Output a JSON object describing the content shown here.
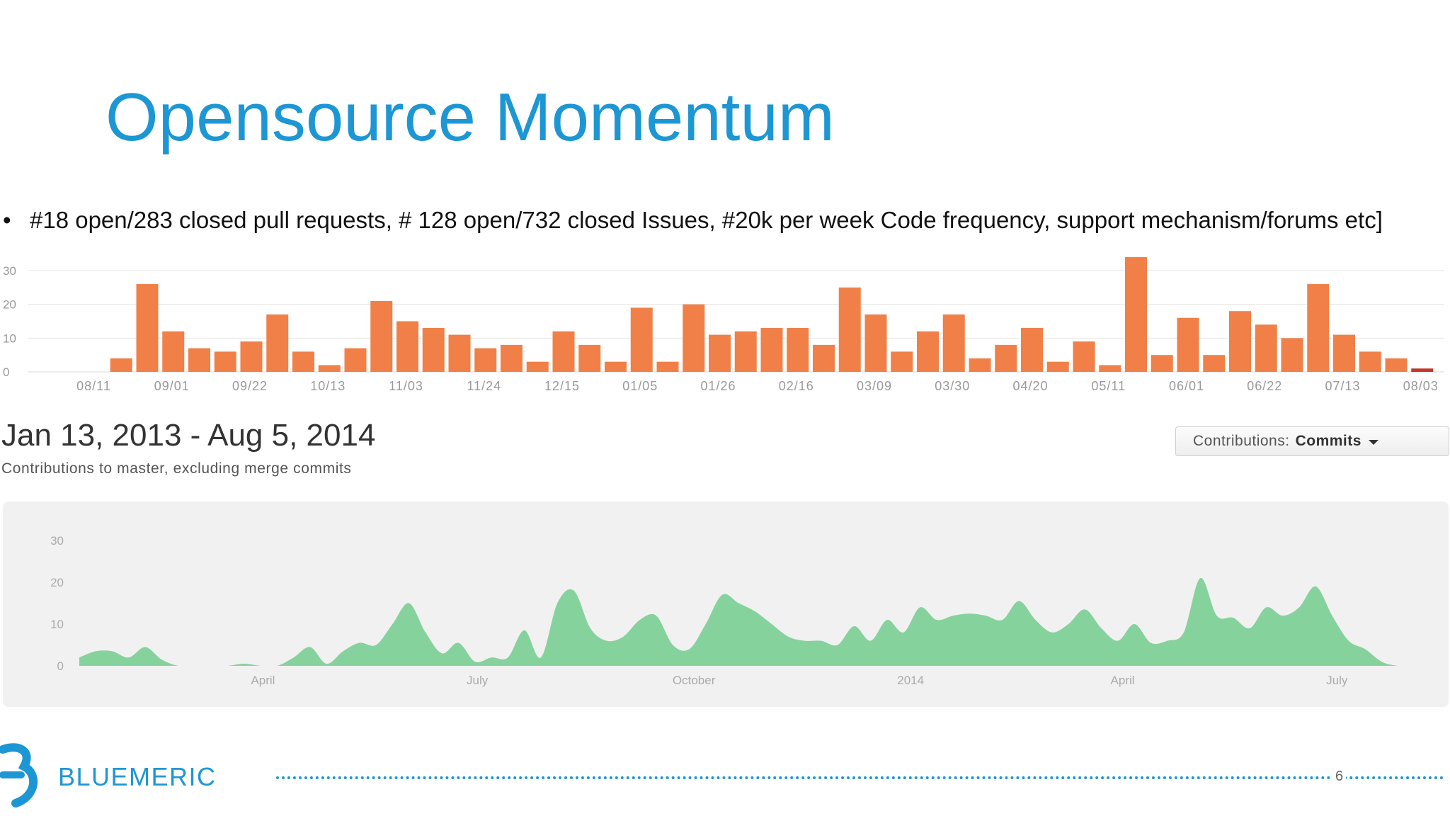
{
  "slide": {
    "title": "Opensource Momentum",
    "bullet_symbol": "•",
    "bullet": "#18 open/283 closed pull requests, # 128 open/732 closed Issues, #20k per week Code frequency, support mechanism/forums etc]",
    "brand": "BLUEMERIC",
    "page_number": "6"
  },
  "colors": {
    "title": "#1d97d3",
    "bar": "#f08048",
    "area": "#86d29d",
    "brand": "#1d97d3"
  },
  "date_range": "Jan 13, 2013 - Aug 5, 2014",
  "date_subtitle": "Contributions to master, excluding merge commits",
  "contributions_select": {
    "label": "Contributions:",
    "value": "Commits"
  },
  "chart_data": [
    {
      "type": "bar",
      "ylim": [
        0,
        30
      ],
      "yticks": [
        "0",
        "10",
        "20",
        "30"
      ],
      "grid": true,
      "xtick_labels": [
        "08/11",
        "09/01",
        "09/22",
        "10/13",
        "11/03",
        "11/24",
        "12/15",
        "01/05",
        "01/26",
        "02/16",
        "03/09",
        "03/30",
        "04/20",
        "05/11",
        "06/01",
        "06/22",
        "07/13",
        "08/03"
      ],
      "x": [
        "08/11",
        "08/18",
        "08/25",
        "09/01",
        "09/08",
        "09/15",
        "09/22",
        "09/29",
        "10/06",
        "10/13",
        "10/20",
        "10/27",
        "11/03",
        "11/10",
        "11/17",
        "11/24",
        "12/01",
        "12/08",
        "12/15",
        "12/22",
        "12/29",
        "01/05",
        "01/12",
        "01/19",
        "01/26",
        "02/02",
        "02/09",
        "02/16",
        "02/23",
        "03/02",
        "03/09",
        "03/16",
        "03/23",
        "03/30",
        "04/06",
        "04/13",
        "04/20",
        "04/27",
        "05/04",
        "05/11",
        "05/18",
        "05/25",
        "06/01",
        "06/08",
        "06/15",
        "06/22",
        "06/29",
        "07/06",
        "07/13",
        "07/20",
        "07/27",
        "08/03"
      ],
      "values": [
        0,
        4,
        26,
        12,
        7,
        6,
        9,
        17,
        6,
        2,
        7,
        21,
        15,
        13,
        11,
        7,
        8,
        3,
        12,
        8,
        3,
        19,
        3,
        20,
        11,
        12,
        13,
        13,
        8,
        25,
        17,
        6,
        12,
        17,
        4,
        8,
        13,
        3,
        9,
        2,
        34,
        5,
        16,
        5,
        18,
        14,
        10,
        26,
        11,
        6,
        4,
        1
      ]
    },
    {
      "type": "area",
      "ylim": [
        0,
        30
      ],
      "yticks": [
        "0",
        "10",
        "20",
        "30"
      ],
      "grid": false,
      "x_labels": [
        "April",
        "July",
        "October",
        "2014",
        "April",
        "July"
      ],
      "x": [
        "2013-01-13",
        "2013-01-20",
        "2013-01-27",
        "2013-02-03",
        "2013-02-10",
        "2013-02-17",
        "2013-02-24",
        "2013-03-03",
        "2013-03-10",
        "2013-03-17",
        "2013-03-24",
        "2013-03-31",
        "2013-04-07",
        "2013-04-14",
        "2013-04-21",
        "2013-04-28",
        "2013-05-05",
        "2013-05-12",
        "2013-05-19",
        "2013-05-26",
        "2013-06-02",
        "2013-06-09",
        "2013-06-16",
        "2013-06-23",
        "2013-06-30",
        "2013-07-07",
        "2013-07-14",
        "2013-07-21",
        "2013-07-28",
        "2013-08-04",
        "2013-08-11",
        "2013-08-18",
        "2013-08-25",
        "2013-09-01",
        "2013-09-08",
        "2013-09-15",
        "2013-09-22",
        "2013-09-29",
        "2013-10-06",
        "2013-10-13",
        "2013-10-20",
        "2013-10-27",
        "2013-11-03",
        "2013-11-10",
        "2013-11-17",
        "2013-11-24",
        "2013-12-01",
        "2013-12-08",
        "2013-12-15",
        "2013-12-22",
        "2013-12-29",
        "2014-01-05",
        "2014-01-12",
        "2014-01-19",
        "2014-01-26",
        "2014-02-02",
        "2014-02-09",
        "2014-02-16",
        "2014-02-23",
        "2014-03-02",
        "2014-03-09",
        "2014-03-16",
        "2014-03-23",
        "2014-03-30",
        "2014-04-06",
        "2014-04-13",
        "2014-04-20",
        "2014-04-27",
        "2014-05-04",
        "2014-05-11",
        "2014-05-18",
        "2014-05-25",
        "2014-06-01",
        "2014-06-08",
        "2014-06-15",
        "2014-06-22",
        "2014-06-29",
        "2014-07-06",
        "2014-07-13",
        "2014-07-20",
        "2014-07-27",
        "2014-08-03"
      ],
      "values": [
        2,
        3.5,
        3.5,
        2,
        4.5,
        1.5,
        0,
        0,
        0,
        0,
        0.5,
        0,
        0,
        2,
        4.5,
        0.5,
        3.5,
        5.5,
        5,
        10,
        15,
        8,
        3,
        5.5,
        1,
        2,
        2,
        8.5,
        2,
        15,
        18,
        9,
        6,
        7,
        11,
        12,
        5,
        4,
        10,
        17,
        15,
        13,
        10,
        7,
        6,
        6,
        5,
        9.5,
        6,
        11,
        8,
        14,
        11,
        12,
        12.5,
        12,
        11,
        15.5,
        11,
        8,
        10,
        13.5,
        9,
        6,
        10,
        5.5,
        6,
        8,
        21,
        12,
        11.5,
        9,
        14,
        12,
        14,
        19,
        12,
        6,
        4,
        1,
        0,
        0
      ]
    }
  ]
}
